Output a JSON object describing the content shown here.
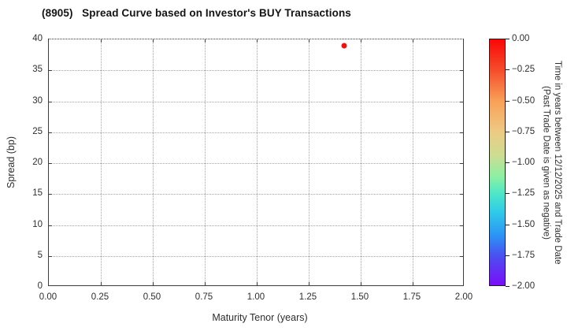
{
  "chart_data": {
    "type": "scatter",
    "title": "(8905)   Spread Curve based on Investor's BUY Transactions",
    "xlabel": "Maturity Tenor (years)",
    "ylabel": "Spread (bp)",
    "xlim": [
      0,
      2
    ],
    "ylim": [
      0,
      40
    ],
    "grid": true,
    "xticks": {
      "values": [
        0,
        0.25,
        0.5,
        0.75,
        1.0,
        1.25,
        1.5,
        1.75,
        2.0
      ],
      "labels": [
        "0.00",
        "0.25",
        "0.50",
        "0.75",
        "1.00",
        "1.25",
        "1.50",
        "1.75",
        "2.00"
      ]
    },
    "yticks": {
      "values": [
        0,
        5,
        10,
        15,
        20,
        25,
        30,
        35,
        40
      ],
      "labels": [
        "0",
        "5",
        "10",
        "15",
        "20",
        "25",
        "30",
        "35",
        "40"
      ]
    },
    "points": [
      {
        "x": 1.42,
        "y": 39,
        "color_value": 0.0,
        "color": "#f51010"
      }
    ],
    "colorbar": {
      "max": 0.0,
      "min": -2.0,
      "ticks": [
        "0.00",
        "−0.25",
        "−0.50",
        "−0.75",
        "−1.00",
        "−1.25",
        "−1.50",
        "−1.75",
        "−2.00"
      ],
      "label_line1": "Time in years between 12/12/2025 and Trade Date",
      "label_line2": "(Past Trade Date is given as negative)",
      "gradient": [
        {
          "pos": 0,
          "color": "#fb0606"
        },
        {
          "pos": 12.5,
          "color": "#f54d2b"
        },
        {
          "pos": 25,
          "color": "#f9a057"
        },
        {
          "pos": 37.5,
          "color": "#eeca83"
        },
        {
          "pos": 47,
          "color": "#cedd92"
        },
        {
          "pos": 56,
          "color": "#8bf0a3"
        },
        {
          "pos": 62.5,
          "color": "#4fe7c7"
        },
        {
          "pos": 70,
          "color": "#30cce8"
        },
        {
          "pos": 80,
          "color": "#2b93f6"
        },
        {
          "pos": 87.5,
          "color": "#4953f0"
        },
        {
          "pos": 100,
          "color": "#7a0df8"
        }
      ]
    }
  }
}
